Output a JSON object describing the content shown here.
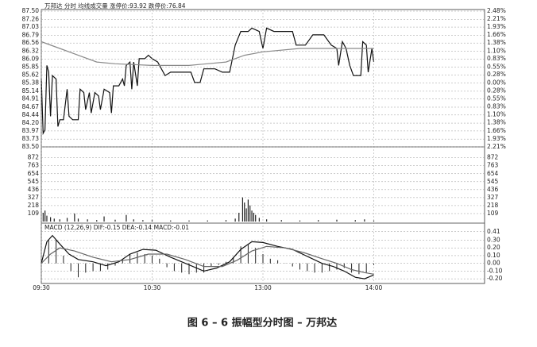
{
  "chart_data": [
    {
      "type": "line",
      "title": "万邦达  分时  均线成交量  涨停价:93.92  跌停价:76.84",
      "xlim": [
        0,
        240
      ],
      "ylim": [
        83.5,
        87.5
      ],
      "yticks": [
        {
          "value": 87.5,
          "label": "87.50"
        },
        87.26,
        87.03,
        86.79,
        86.56,
        86.32,
        86.09,
        85.85,
        85.62,
        85.38,
        85.14,
        84.91,
        84.67,
        84.44,
        {
          "value": 84.2,
          "label": "84.20"
        },
        83.97,
        83.73,
        {
          "value": 83.5,
          "label": "83.50"
        }
      ],
      "y2lim": [
        -2.21,
        2.48
      ],
      "y2ticks": [
        {
          "value": 2.48,
          "label": "2.48%"
        },
        {
          "value": 2.21,
          "label": "2.21%"
        },
        {
          "value": 1.93,
          "label": "1.93%"
        },
        {
          "value": 1.66,
          "label": "1.66%"
        },
        {
          "value": 1.38,
          "label": "1.38%"
        },
        {
          "value": 1.1,
          "label": "1.10%"
        },
        {
          "value": 0.83,
          "label": "0.83%"
        },
        {
          "value": 0.55,
          "label": "0.55%"
        },
        {
          "value": 0.28,
          "label": "0.28%"
        },
        {
          "value": 0,
          "label": "0.00%"
        },
        {
          "value": -0.28,
          "label": "0.28%"
        },
        {
          "value": -0.55,
          "label": "0.55%"
        },
        {
          "value": -0.83,
          "label": "0.83%"
        },
        {
          "value": -1.1,
          "label": "1.10%"
        },
        {
          "value": -1.38,
          "label": "1.38%"
        },
        {
          "value": -1.66,
          "label": "1.66%"
        },
        {
          "value": -1.93,
          "label": "1.93%"
        },
        {
          "value": -2.21,
          "label": "2.21%"
        }
      ],
      "grid": true,
      "series": [
        {
          "color": "#111111",
          "x": [
            0,
            1,
            2,
            3,
            4,
            5,
            6,
            8,
            9,
            10,
            12,
            14,
            15,
            17,
            20,
            21,
            23,
            24,
            26,
            27,
            29,
            31,
            32,
            34,
            37,
            38,
            39,
            42,
            44,
            45,
            46,
            48,
            49,
            50,
            52,
            53,
            56,
            58,
            60,
            63,
            67,
            70,
            74,
            78,
            81,
            83,
            86,
            88,
            94,
            98,
            102,
            105,
            108,
            112,
            114,
            118,
            120,
            122,
            126,
            132,
            136,
            138,
            143,
            147,
            153,
            157,
            160,
            161,
            163,
            165,
            167,
            169,
            173,
            174,
            176,
            177,
            179,
            180
          ],
          "values": [
            85.5,
            83.9,
            84.0,
            85.9,
            85.7,
            84.4,
            85.6,
            85.5,
            84.1,
            84.3,
            84.3,
            85.2,
            84.4,
            84.3,
            84.3,
            85.2,
            85.1,
            84.6,
            85.1,
            84.5,
            85.1,
            85.0,
            84.6,
            85.2,
            85.1,
            84.5,
            85.3,
            85.3,
            85.5,
            85.3,
            85.9,
            86.0,
            85.2,
            86.0,
            85.3,
            86.1,
            86.1,
            86.2,
            86.1,
            86.0,
            85.6,
            85.7,
            85.7,
            85.7,
            85.7,
            85.4,
            85.4,
            85.8,
            85.8,
            85.7,
            85.7,
            86.5,
            86.9,
            86.9,
            87.0,
            86.9,
            86.4,
            87.0,
            86.9,
            86.9,
            86.9,
            86.5,
            86.5,
            86.8,
            86.8,
            86.5,
            86.4,
            85.9,
            86.6,
            86.4,
            85.9,
            85.6,
            85.6,
            86.6,
            86.5,
            85.7,
            86.4,
            86.0
          ]
        },
        {
          "color": "#8a8a8a",
          "x": [
            0,
            10,
            20,
            30,
            40,
            60,
            80,
            100,
            110,
            120,
            140,
            160,
            180
          ],
          "values": [
            86.6,
            86.4,
            86.2,
            86.0,
            85.95,
            85.9,
            85.9,
            86.0,
            86.2,
            86.3,
            86.4,
            86.4,
            86.4
          ]
        }
      ]
    },
    {
      "type": "bar",
      "xlim": [
        0,
        240
      ],
      "ylim": [
        0,
        1010
      ],
      "yticks": [
        872,
        763,
        654,
        545,
        436,
        327,
        218,
        109
      ],
      "grid": true,
      "color": "#222222",
      "x": [
        1,
        2,
        3,
        5,
        7,
        10,
        14,
        18,
        20,
        25,
        30,
        34,
        40,
        46,
        50,
        55,
        60,
        70,
        80,
        90,
        100,
        105,
        107,
        109,
        110,
        111,
        112,
        113,
        114,
        115,
        116,
        118,
        122,
        130,
        140,
        150,
        160,
        170,
        175,
        180
      ],
      "values": [
        120,
        150,
        80,
        60,
        40,
        30,
        50,
        110,
        40,
        30,
        20,
        70,
        25,
        90,
        30,
        20,
        25,
        15,
        15,
        15,
        20,
        40,
        120,
        330,
        260,
        180,
        300,
        220,
        150,
        120,
        90,
        50,
        30,
        20,
        15,
        20,
        25,
        20,
        30,
        15
      ]
    },
    {
      "type": "macd",
      "title": "MACD (12,26,9)  DIF:-0.15  DEA:-0.14  MACD:-0.01",
      "xlim": [
        0,
        240
      ],
      "xticks": [
        {
          "value": 0,
          "label": "09:30"
        },
        {
          "value": 60,
          "label": "10:30"
        },
        {
          "value": 120,
          "label": "13:00"
        },
        {
          "value": 180,
          "label": "14:00"
        }
      ],
      "ylim": [
        -0.25,
        0.5
      ],
      "y2ticks": [
        0.41,
        {
          "value": 0.3,
          "label": "0.30"
        },
        {
          "value": 0.2,
          "label": "0.20"
        },
        {
          "value": 0.1,
          "label": "0.10"
        },
        {
          "value": 0,
          "label": "0.00"
        },
        {
          "value": -0.1,
          "label": "-0.10"
        },
        {
          "value": -0.2,
          "label": "-0.20"
        }
      ],
      "grid": true,
      "series": [
        {
          "color": "#111111",
          "x": [
            0,
            3,
            6,
            10,
            15,
            20,
            28,
            35,
            42,
            48,
            55,
            62,
            70,
            80,
            88,
            95,
            102,
            108,
            114,
            120,
            128,
            136,
            145,
            152,
            158,
            164,
            170,
            175,
            180
          ],
          "values": [
            0.0,
            0.28,
            0.36,
            0.25,
            0.12,
            0.05,
            0.02,
            -0.03,
            0.02,
            0.12,
            0.18,
            0.17,
            0.08,
            -0.02,
            -0.1,
            -0.06,
            0.02,
            0.18,
            0.28,
            0.27,
            0.22,
            0.18,
            0.08,
            0.0,
            -0.04,
            -0.1,
            -0.18,
            -0.2,
            -0.15
          ]
        },
        {
          "color": "#666666",
          "x": [
            0,
            5,
            10,
            18,
            28,
            38,
            48,
            58,
            68,
            78,
            88,
            98,
            106,
            114,
            122,
            132,
            142,
            152,
            160,
            168,
            175,
            180
          ],
          "values": [
            0.0,
            0.12,
            0.2,
            0.16,
            0.08,
            0.02,
            0.05,
            0.12,
            0.12,
            0.05,
            -0.04,
            -0.04,
            0.04,
            0.16,
            0.22,
            0.2,
            0.14,
            0.06,
            0.0,
            -0.08,
            -0.12,
            -0.14
          ]
        }
      ],
      "histogram": {
        "color": "#222222",
        "x": [
          0,
          4,
          8,
          12,
          16,
          20,
          24,
          28,
          32,
          36,
          40,
          44,
          48,
          52,
          56,
          60,
          64,
          68,
          72,
          76,
          80,
          84,
          88,
          92,
          96,
          100,
          104,
          108,
          112,
          116,
          120,
          124,
          128,
          132,
          136,
          140,
          144,
          148,
          152,
          156,
          160,
          164,
          168,
          172,
          176,
          180
        ],
        "values": [
          0,
          0.3,
          0.3,
          0.1,
          -0.1,
          -0.18,
          -0.12,
          -0.1,
          -0.1,
          -0.08,
          -0.03,
          0.05,
          0.12,
          0.14,
          0.12,
          0.1,
          0.06,
          -0.05,
          -0.1,
          -0.12,
          -0.14,
          -0.12,
          -0.12,
          -0.04,
          -0.02,
          0.02,
          0.08,
          0.22,
          0.24,
          0.2,
          0.12,
          0.06,
          0.04,
          0.0,
          -0.04,
          -0.08,
          -0.1,
          -0.12,
          -0.12,
          -0.1,
          -0.08,
          -0.06,
          -0.12,
          -0.14,
          -0.12,
          -0.02
        ]
      }
    }
  ],
  "caption": "图 6 – 6    振幅型分时图 – 万邦达"
}
